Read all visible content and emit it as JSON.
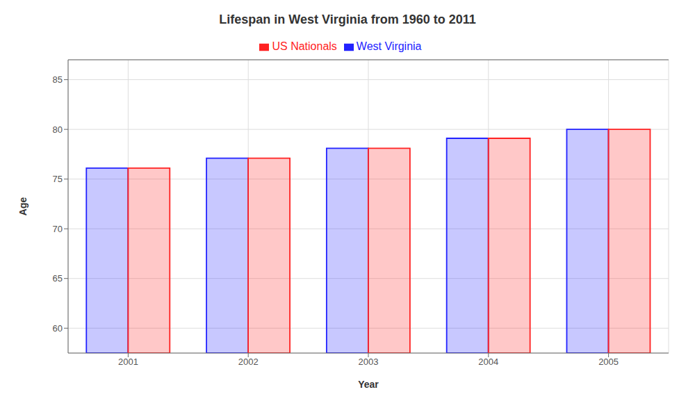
{
  "chart_data": {
    "type": "bar",
    "title": "Lifespan in West Virginia from 1960 to 2011",
    "x_label": "Year",
    "y_label": "Age",
    "categories": [
      "2001",
      "2002",
      "2003",
      "2004",
      "2005"
    ],
    "series": [
      {
        "name": "West Virginia",
        "color": "#2222ff",
        "values": [
          76.1,
          77.1,
          78.1,
          79.1,
          80.0
        ]
      },
      {
        "name": "US Nationals",
        "color": "#ff2222",
        "values": [
          76.1,
          77.1,
          78.1,
          79.1,
          80.0
        ]
      }
    ],
    "ylim": [
      57.5,
      87
    ],
    "yticks": [
      60,
      65,
      70,
      75,
      80,
      85
    ],
    "grid": true,
    "legend": "top"
  }
}
